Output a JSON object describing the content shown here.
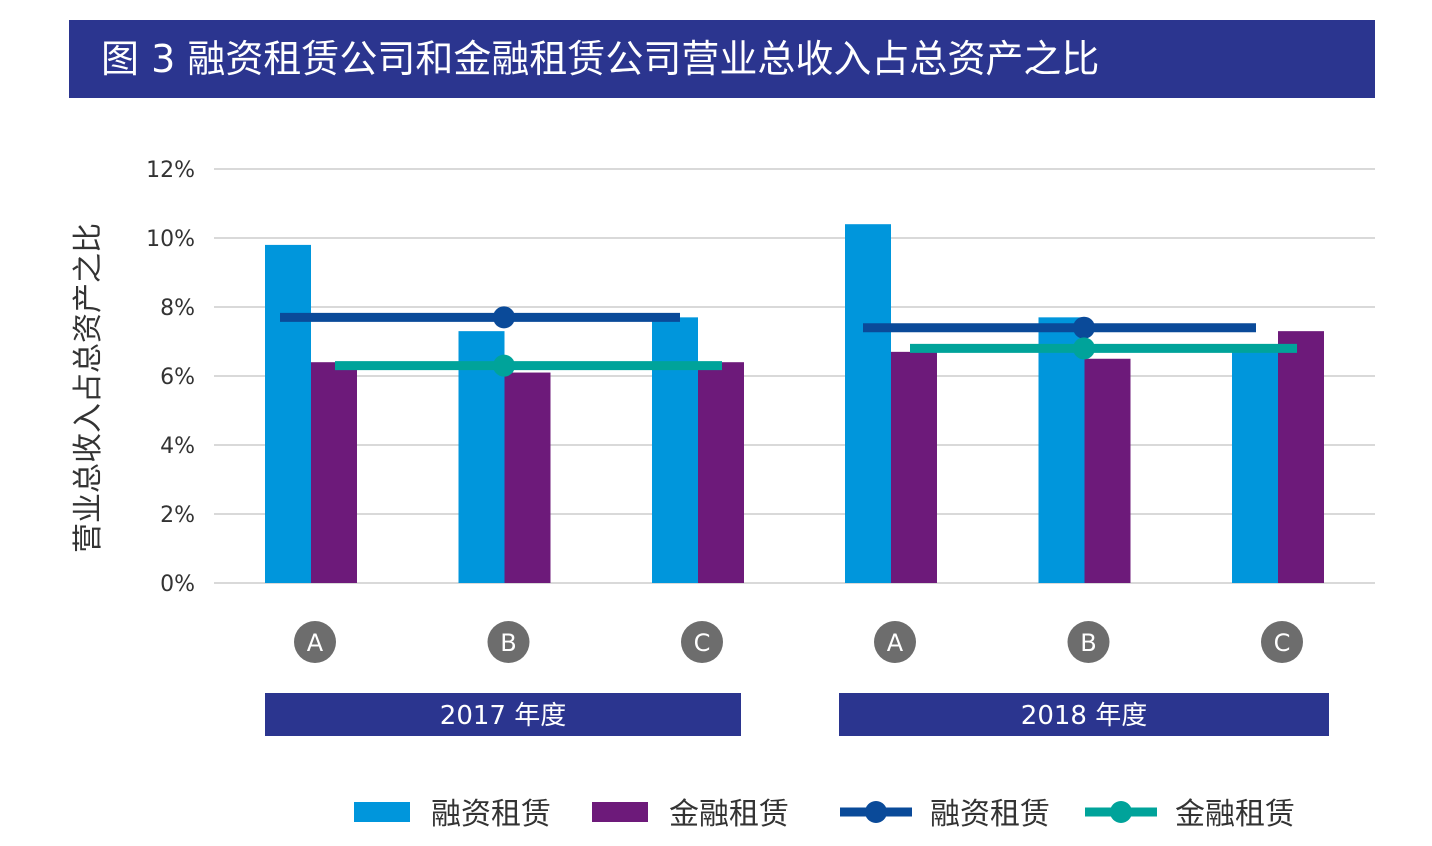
{
  "chart_data": {
    "type": "bar",
    "title": "图 3  融资租赁公司和金融租赁公司营业总收入占总资产之比",
    "ylabel": "营业总收入占总资产之比",
    "ylim": [
      0,
      12
    ],
    "yticks": [
      "0%",
      "2%",
      "4%",
      "6%",
      "8%",
      "10%",
      "12%"
    ],
    "grid": true,
    "legend_position": "bottom",
    "groups": [
      {
        "label": "2017 年度",
        "categories": [
          "A",
          "B",
          "C"
        ]
      },
      {
        "label": "2018 年度",
        "categories": [
          "A",
          "B",
          "C"
        ]
      }
    ],
    "series": [
      {
        "name": "融资租赁",
        "kind": "bar",
        "color": "#0096dc",
        "values": [
          [
            9.8,
            7.3,
            7.7
          ],
          [
            10.4,
            7.7,
            6.8
          ]
        ]
      },
      {
        "name": "金融租赁",
        "kind": "bar",
        "color": "#6d1a7a",
        "values": [
          [
            6.4,
            6.1,
            6.4
          ],
          [
            6.7,
            6.5,
            7.3
          ]
        ]
      },
      {
        "name": "融资租赁",
        "kind": "line",
        "color": "#0a4a99",
        "values": [
          7.7,
          7.4
        ]
      },
      {
        "name": "金融租赁",
        "kind": "line",
        "color": "#00a39a",
        "values": [
          6.3,
          6.8
        ]
      }
    ]
  },
  "colors": {
    "title_bg": "#2b358f",
    "category_circle": "#6d6d6d",
    "grid": "#d9d9d9"
  }
}
